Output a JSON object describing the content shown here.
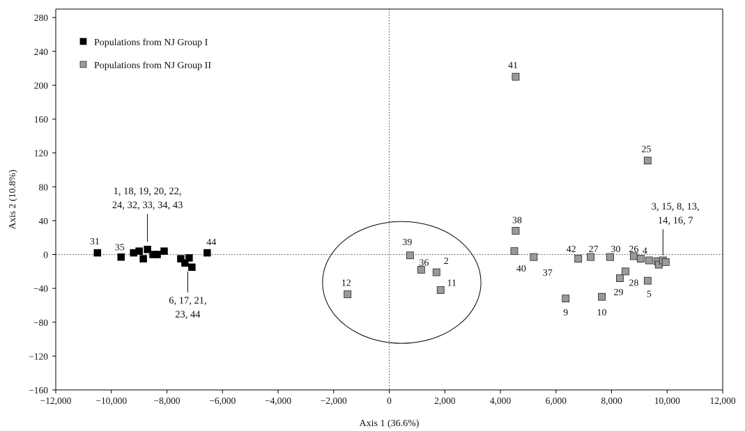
{
  "chart_data": {
    "type": "scatter",
    "title": "",
    "xlabel": "Axis 1 (36.6%)",
    "ylabel": "Axis 2 (10.8%)",
    "xlim": [
      -12000,
      12000
    ],
    "ylim": [
      -160,
      290
    ],
    "xticks": [
      -12000,
      -10000,
      -8000,
      -6000,
      -4000,
      -2000,
      0,
      2000,
      4000,
      6000,
      8000,
      10000,
      12000
    ],
    "xtick_labels": [
      "−12,000",
      "−10,000",
      "−8,000",
      "−6,000",
      "−4,000",
      "−2,000",
      "0",
      "2,000",
      "4,000",
      "6,000",
      "8,000",
      "10,000",
      "12,000"
    ],
    "yticks": [
      -160,
      -120,
      -80,
      -40,
      0,
      40,
      80,
      120,
      160,
      200,
      240,
      280
    ],
    "ytick_labels": [
      "−160",
      "−120",
      "−80",
      "−40",
      "0",
      "40",
      "80",
      "120",
      "160",
      "200",
      "240",
      "280"
    ],
    "grid": false,
    "reference_lines": "dotted lines at x=0 and y=0",
    "legend_position": "top-left",
    "series": [
      {
        "name": "Populations from NJ Group I",
        "color": "#000000",
        "points": [
          {
            "x": -10500,
            "y": 2
          },
          {
            "x": -9650,
            "y": -3
          },
          {
            "x": -9200,
            "y": 2
          },
          {
            "x": -9000,
            "y": 4
          },
          {
            "x": -8850,
            "y": -5
          },
          {
            "x": -8700,
            "y": 6
          },
          {
            "x": -8500,
            "y": 0
          },
          {
            "x": -8350,
            "y": 0
          },
          {
            "x": -8100,
            "y": 4
          },
          {
            "x": -7500,
            "y": -5
          },
          {
            "x": -7350,
            "y": -10
          },
          {
            "x": -7200,
            "y": -4
          },
          {
            "x": -7100,
            "y": -15
          },
          {
            "x": -6550,
            "y": 2
          }
        ]
      },
      {
        "name": "Populations from NJ Group II",
        "color": "#9a9a9a",
        "points": [
          {
            "x": 4550,
            "y": 210
          },
          {
            "x": 9300,
            "y": 111
          },
          {
            "x": 4550,
            "y": 28
          },
          {
            "x": 4500,
            "y": 4
          },
          {
            "x": 5200,
            "y": -3
          },
          {
            "x": 750,
            "y": -1
          },
          {
            "x": 1150,
            "y": -18
          },
          {
            "x": 1700,
            "y": -21
          },
          {
            "x": 1850,
            "y": -42
          },
          {
            "x": -1500,
            "y": -47
          },
          {
            "x": 6350,
            "y": -52
          },
          {
            "x": 7650,
            "y": -50
          },
          {
            "x": 6800,
            "y": -5
          },
          {
            "x": 7250,
            "y": -3
          },
          {
            "x": 7950,
            "y": -3
          },
          {
            "x": 8300,
            "y": -28
          },
          {
            "x": 8500,
            "y": -20
          },
          {
            "x": 8800,
            "y": -2
          },
          {
            "x": 9050,
            "y": -5
          },
          {
            "x": 9350,
            "y": -7
          },
          {
            "x": 9650,
            "y": -8
          },
          {
            "x": 9700,
            "y": -12
          },
          {
            "x": 9850,
            "y": -7
          },
          {
            "x": 9950,
            "y": -9
          },
          {
            "x": 9300,
            "y": -31
          }
        ]
      }
    ],
    "point_labels": [
      {
        "text": "31",
        "x": -10600,
        "y": 12
      },
      {
        "text": "35",
        "x": -9700,
        "y": 5
      },
      {
        "text": "44",
        "x": -6400,
        "y": 11
      },
      {
        "text": "41",
        "x": 4450,
        "y": 220
      },
      {
        "text": "25",
        "x": 9250,
        "y": 121
      },
      {
        "text": "38",
        "x": 4600,
        "y": 37
      },
      {
        "text": "40",
        "x": 4750,
        "y": -20
      },
      {
        "text": "37",
        "x": 5700,
        "y": -25
      },
      {
        "text": "39",
        "x": 650,
        "y": 11
      },
      {
        "text": "36",
        "x": 1250,
        "y": -13
      },
      {
        "text": "2",
        "x": 2050,
        "y": -11
      },
      {
        "text": "11",
        "x": 2250,
        "y": -37
      },
      {
        "text": "12",
        "x": -1550,
        "y": -37
      },
      {
        "text": "9",
        "x": 6350,
        "y": -72
      },
      {
        "text": "10",
        "x": 7650,
        "y": -72
      },
      {
        "text": "42",
        "x": 6550,
        "y": 3
      },
      {
        "text": "27",
        "x": 7350,
        "y": 3
      },
      {
        "text": "30",
        "x": 8150,
        "y": 3
      },
      {
        "text": "26",
        "x": 8800,
        "y": 3
      },
      {
        "text": "4",
        "x": 9200,
        "y": 1
      },
      {
        "text": "28",
        "x": 8800,
        "y": -37
      },
      {
        "text": "29",
        "x": 8250,
        "y": -48
      },
      {
        "text": "5",
        "x": 9350,
        "y": -50
      }
    ],
    "cluster_labels": [
      {
        "lines": [
          "1, 18, 19, 20, 22,",
          "24, 32, 33, 34, 43"
        ],
        "x": -8700,
        "y": 71,
        "line_to": [
          -8700,
          15
        ]
      },
      {
        "lines": [
          "6, 17, 21,",
          "23, 44"
        ],
        "x": -7250,
        "y": -58,
        "line_to": [
          -7250,
          -20
        ]
      },
      {
        "lines": [
          "3, 15, 8, 13,",
          "14, 16, 7"
        ],
        "x": 10300,
        "y": 53,
        "line_to": [
          9850,
          -1
        ]
      }
    ],
    "ellipse": {
      "cx": 450,
      "cy": -33,
      "rx": 2850,
      "ry": 72
    }
  }
}
